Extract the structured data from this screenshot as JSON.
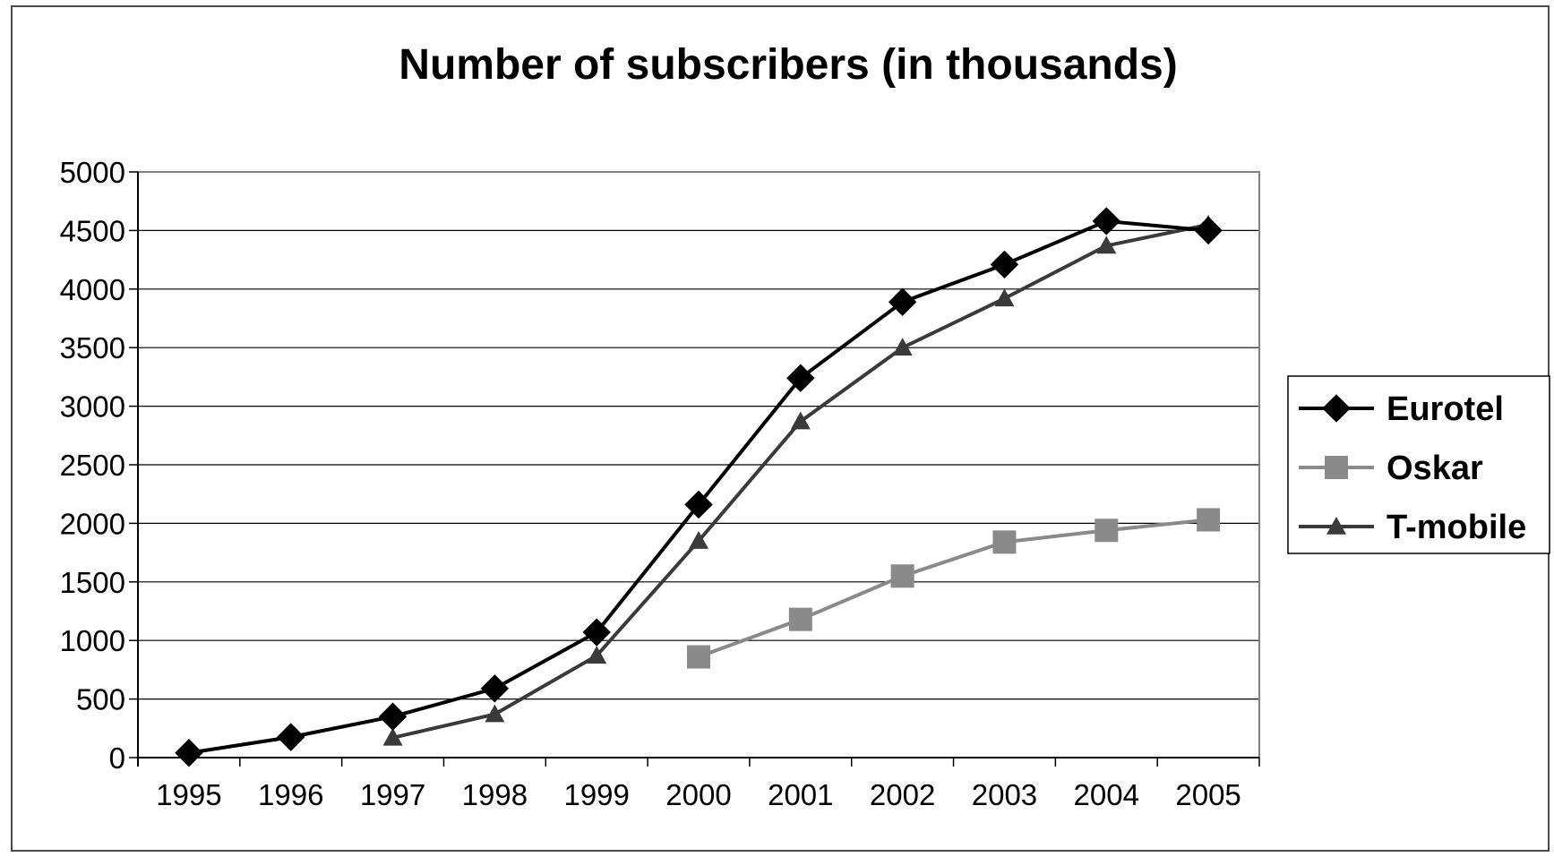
{
  "chart_data": {
    "type": "line",
    "title": "Number of subscribers (in thousands)",
    "xlabel": "",
    "ylabel": "",
    "categories": [
      "1995",
      "1996",
      "1997",
      "1998",
      "1999",
      "2000",
      "2001",
      "2002",
      "2003",
      "2004",
      "2005"
    ],
    "ylim": [
      0,
      5000
    ],
    "yticks": [
      0,
      500,
      1000,
      1500,
      2000,
      2500,
      3000,
      3500,
      4000,
      4500,
      5000
    ],
    "grid": true,
    "legend_position": "right",
    "series": [
      {
        "name": "Eurotel",
        "marker": "diamond",
        "color": "#000000",
        "values": [
          40,
          175,
          350,
          590,
          1070,
          2160,
          3240,
          3890,
          4210,
          4580,
          4500
        ]
      },
      {
        "name": "Oskar",
        "marker": "square",
        "color": "#8a8a8a",
        "values": [
          null,
          null,
          null,
          null,
          null,
          860,
          1180,
          1550,
          1840,
          1940,
          2030
        ]
      },
      {
        "name": "T-mobile",
        "marker": "triangle",
        "color": "#3a3a3a",
        "values": [
          null,
          null,
          170,
          370,
          870,
          1850,
          2870,
          3500,
          3920,
          4370,
          4550
        ]
      }
    ]
  }
}
